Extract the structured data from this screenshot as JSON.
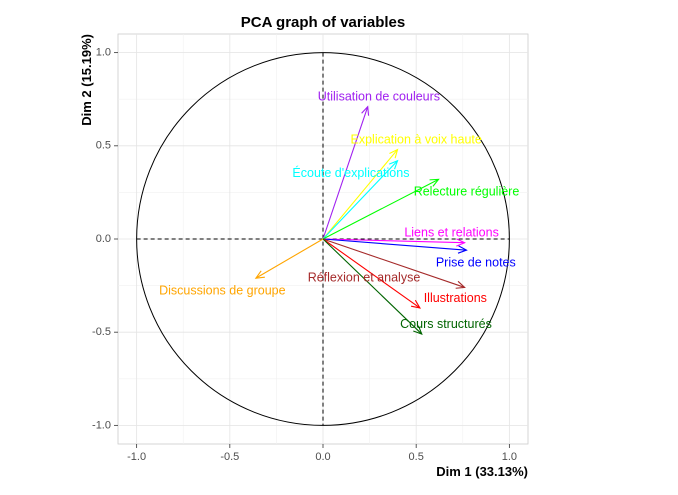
{
  "chart_data": {
    "type": "scatter",
    "title": "PCA graph of variables",
    "xlabel": "Dim 1 (33.13%)",
    "ylabel": "Dim 2 (15.19%)",
    "xlim": [
      -1.1,
      1.1
    ],
    "ylim": [
      -1.1,
      1.1
    ],
    "x_ticks": [
      -1.0,
      -0.5,
      0.0,
      0.5,
      1.0
    ],
    "y_ticks": [
      -1.0,
      -0.5,
      0.0,
      0.5,
      1.0
    ],
    "x_tick_labels": [
      "-1.0",
      "-0.5",
      "0.0",
      "0.5",
      "1.0"
    ],
    "y_tick_labels": [
      "-1.0",
      "-0.5",
      "0.0",
      "0.5",
      "1.0"
    ],
    "grid": true,
    "unit_circle": true,
    "variables": [
      {
        "name": "Utilisation de couleurs",
        "x": 0.24,
        "y": 0.71,
        "color": "#a020f0",
        "label_x": 0.3,
        "label_y": 0.76
      },
      {
        "name": "Explication à voix haute",
        "x": 0.4,
        "y": 0.48,
        "color": "#ffff00",
        "label_x": 0.5,
        "label_y": 0.53
      },
      {
        "name": "Écoute d'explications",
        "x": 0.4,
        "y": 0.42,
        "color": "#00ffff",
        "label_x": 0.15,
        "label_y": 0.35
      },
      {
        "name": "Relecture régulière",
        "x": 0.62,
        "y": 0.32,
        "color": "#00ff00",
        "label_x": 0.77,
        "label_y": 0.25
      },
      {
        "name": "Liens et relations",
        "x": 0.76,
        "y": -0.02,
        "color": "#ff00ff",
        "label_x": 0.69,
        "label_y": 0.03
      },
      {
        "name": "Prise de notes",
        "x": 0.77,
        "y": -0.06,
        "color": "#0000ff",
        "label_x": 0.82,
        "label_y": -0.13
      },
      {
        "name": "Réflexion et analyse",
        "x": 0.76,
        "y": -0.26,
        "color": "#a52a2a",
        "label_x": 0.22,
        "label_y": -0.21
      },
      {
        "name": "Illustrations",
        "x": 0.52,
        "y": -0.37,
        "color": "#ff0000",
        "label_x": 0.71,
        "label_y": -0.32
      },
      {
        "name": "Cours structurés",
        "x": 0.53,
        "y": -0.51,
        "color": "#006400",
        "label_x": 0.66,
        "label_y": -0.46
      },
      {
        "name": "Discussions de groupe",
        "x": -0.36,
        "y": -0.21,
        "color": "#ffa500",
        "label_x": -0.54,
        "label_y": -0.28
      }
    ]
  }
}
